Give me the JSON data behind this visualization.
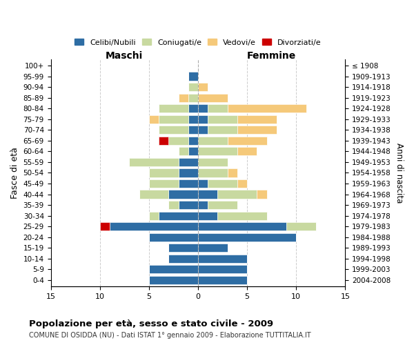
{
  "age_groups": [
    "0-4",
    "5-9",
    "10-14",
    "15-19",
    "20-24",
    "25-29",
    "30-34",
    "35-39",
    "40-44",
    "45-49",
    "50-54",
    "55-59",
    "60-64",
    "65-69",
    "70-74",
    "75-79",
    "80-84",
    "85-89",
    "90-94",
    "95-99",
    "100+"
  ],
  "birth_years": [
    "2004-2008",
    "1999-2003",
    "1994-1998",
    "1989-1993",
    "1984-1988",
    "1979-1983",
    "1974-1978",
    "1969-1973",
    "1964-1968",
    "1959-1963",
    "1954-1958",
    "1949-1953",
    "1944-1948",
    "1939-1943",
    "1934-1938",
    "1929-1933",
    "1924-1928",
    "1919-1923",
    "1914-1918",
    "1909-1913",
    "≤ 1908"
  ],
  "males": {
    "celibi": [
      5,
      5,
      3,
      3,
      5,
      9,
      4,
      2,
      3,
      2,
      2,
      2,
      1,
      1,
      1,
      1,
      1,
      0,
      0,
      1,
      0
    ],
    "coniugati": [
      0,
      0,
      0,
      0,
      0,
      0,
      1,
      1,
      3,
      3,
      3,
      5,
      1,
      2,
      3,
      3,
      3,
      1,
      1,
      0,
      0
    ],
    "vedovi": [
      0,
      0,
      0,
      0,
      0,
      0,
      0,
      0,
      0,
      0,
      0,
      0,
      0,
      0,
      0,
      1,
      0,
      1,
      0,
      0,
      0
    ],
    "divorziati": [
      0,
      0,
      0,
      0,
      0,
      1,
      0,
      0,
      0,
      0,
      0,
      0,
      0,
      1,
      0,
      0,
      0,
      0,
      0,
      0,
      0
    ]
  },
  "females": {
    "nubili": [
      5,
      5,
      5,
      3,
      10,
      9,
      2,
      1,
      2,
      1,
      0,
      0,
      0,
      0,
      1,
      1,
      1,
      0,
      0,
      0,
      0
    ],
    "coniugate": [
      0,
      0,
      0,
      0,
      0,
      3,
      5,
      3,
      4,
      3,
      3,
      3,
      4,
      3,
      3,
      3,
      2,
      0,
      0,
      0,
      0
    ],
    "vedove": [
      0,
      0,
      0,
      0,
      0,
      0,
      0,
      0,
      1,
      1,
      1,
      0,
      2,
      4,
      4,
      4,
      8,
      3,
      1,
      0,
      0
    ],
    "divorziate": [
      0,
      0,
      0,
      0,
      0,
      0,
      0,
      0,
      0,
      0,
      0,
      0,
      0,
      0,
      0,
      0,
      0,
      0,
      0,
      0,
      0
    ]
  },
  "color_celibi": "#2e6da4",
  "color_coniugati": "#c8d9a0",
  "color_vedovi": "#f5c97a",
  "color_divorziati": "#cc0000",
  "xlim": 15,
  "title": "Popolazione per età, sesso e stato civile - 2009",
  "subtitle": "COMUNE DI OSIDDA (NU) - Dati ISTAT 1° gennaio 2009 - Elaborazione TUTTITALIA.IT",
  "ylabel_left": "Fasce di età",
  "ylabel_right": "Anni di nascita",
  "xlabel_maschi": "Maschi",
  "xlabel_femmine": "Femmine",
  "legend_labels": [
    "Celibi/Nubili",
    "Coniugati/e",
    "Vedovi/e",
    "Divorziati/e"
  ],
  "bg_color": "#ffffff",
  "grid_color": "#cccccc"
}
